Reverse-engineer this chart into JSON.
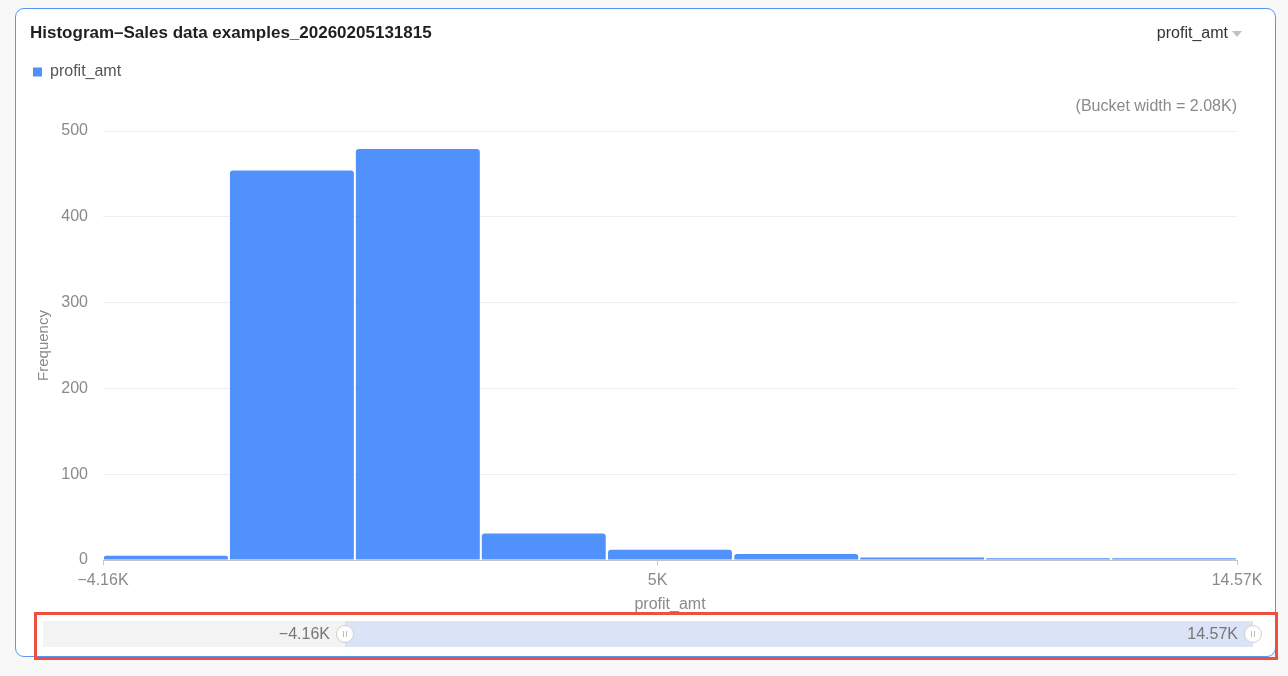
{
  "chart_data": {
    "type": "histogram",
    "title": "Histogram–Sales data examples_20260205131815",
    "xlabel": "profit_amt",
    "ylabel": "Frequency",
    "annotations": [
      "(Bucket width = 2.08K)"
    ],
    "bins": [
      -4.16,
      -2.08,
      0,
      2.08,
      4.16,
      6.25,
      8.33,
      10.41,
      12.49,
      14.57
    ],
    "series": [
      {
        "name": "profit_amt",
        "color": "#5091fb",
        "values": [
          5,
          454,
          479,
          31,
          12,
          7,
          3,
          2,
          2
        ]
      }
    ],
    "xlim": [
      -4.16,
      14.57
    ],
    "xticks": [
      {
        "value": -4.16,
        "label": "−4.16K"
      },
      {
        "value": 5,
        "label": "5K"
      },
      {
        "value": 14.57,
        "label": "14.57K"
      }
    ],
    "ylim": [
      0,
      500
    ],
    "yticks": [
      0,
      100,
      200,
      300,
      400,
      500
    ],
    "grid": "y",
    "legend": "top left"
  }
}
